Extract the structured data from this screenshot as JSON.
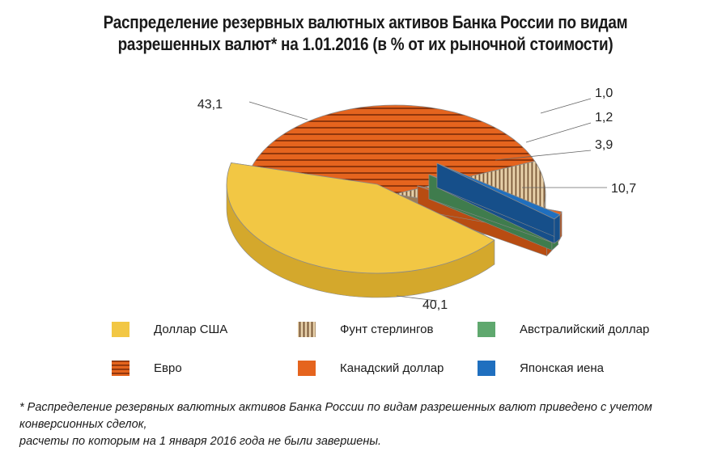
{
  "title_line1": "Распределение резервных валютных активов Банка России по видам",
  "title_line2": "разрешенных валют* на 1.01.2016 (в % от их рыночной стоимости)",
  "chart_data": {
    "type": "pie",
    "title": "Распределение резервных валютных активов Банка России по видам разрешенных валют* на 1.01.2016 (в % от их рыночной стоимости)",
    "slices": [
      {
        "name": "Доллар США",
        "value": 43.1,
        "label": "43,1",
        "color": "#f2c744",
        "pattern": "solid"
      },
      {
        "name": "Японская иена",
        "value": 1.0,
        "label": "1,0",
        "color": "#1f6fbf",
        "pattern": "solid"
      },
      {
        "name": "Австралийский доллар",
        "value": 1.2,
        "label": "1,2",
        "color": "#5fa86e",
        "pattern": "solid"
      },
      {
        "name": "Канадский доллар",
        "value": 3.9,
        "label": "3,9",
        "color": "#e5641e",
        "pattern": "solid"
      },
      {
        "name": "Фунт стерлингов",
        "value": 10.7,
        "label": "10,7",
        "color": "#c9a47c",
        "pattern": "vertical-stripes"
      },
      {
        "name": "Евро",
        "value": 40.1,
        "label": "40,1",
        "color": "#e5641e",
        "pattern": "horizontal-stripes"
      }
    ],
    "legend_position": "bottom"
  },
  "legend": [
    {
      "name": "Доллар США",
      "color": "#f2c744",
      "pattern": "solid"
    },
    {
      "name": "Фунт стерлингов",
      "color": "#c9a47c",
      "pattern": "vertical-stripes"
    },
    {
      "name": "Австралийский доллар",
      "color": "#5fa86e",
      "pattern": "solid"
    },
    {
      "name": "Евро",
      "color": "#e5641e",
      "pattern": "horizontal-stripes"
    },
    {
      "name": "Канадский доллар",
      "color": "#e5641e",
      "pattern": "solid"
    },
    {
      "name": "Японская иена",
      "color": "#1f6fbf",
      "pattern": "solid"
    }
  ],
  "footnote_line1": "* Распределение резервных валютных активов Банка России по видам разрешенных валют приведено с учетом конверсионных сделок,",
  "footnote_line2": "расчеты по которым  на 1 января 2016 года не были завершены."
}
